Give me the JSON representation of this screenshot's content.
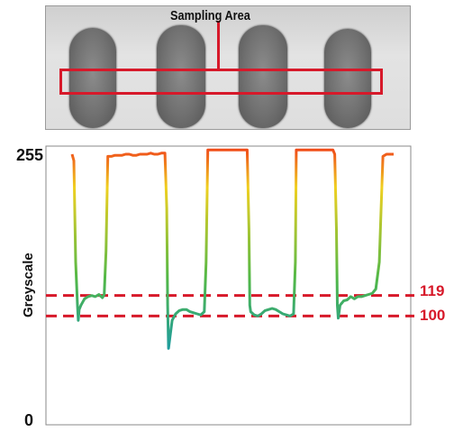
{
  "photo": {
    "annotation_label": "Sampling Area",
    "pill_count": 4
  },
  "chart_data": {
    "type": "line",
    "title": "",
    "xlabel": "",
    "ylabel": "Greyscale",
    "ylim": [
      0,
      255
    ],
    "y_tick_labels": [
      "255",
      "0"
    ],
    "reference_lines": [
      {
        "value": 119,
        "label": "119",
        "color": "#d7192a",
        "style": "dashed"
      },
      {
        "value": 100,
        "label": "100",
        "color": "#d7192a",
        "style": "dashed"
      }
    ],
    "color_scale": {
      "low": "#1a9aa6",
      "mid_low": "#52b847",
      "mid": "#f0d020",
      "high": "#f04a1a"
    },
    "series": [
      {
        "x": [
          0,
          2,
          4,
          6,
          7,
          8,
          10,
          12,
          14,
          18,
          22,
          26,
          30,
          34,
          36,
          38,
          40,
          44,
          48,
          52,
          56,
          60,
          64,
          68,
          72,
          76,
          80,
          84,
          88,
          92,
          96,
          100,
          104,
          106,
          107,
          108,
          112,
          116,
          120,
          124,
          128,
          132,
          136,
          140,
          144,
          148,
          150,
          152,
          154,
          155,
          156,
          160,
          164,
          168,
          172,
          176,
          180,
          184,
          188,
          192,
          196,
          198,
          199,
          200,
          204,
          208,
          212,
          216,
          220,
          224,
          228,
          232,
          236,
          240,
          244,
          248,
          250,
          251,
          252,
          256,
          260,
          264,
          268,
          272,
          276,
          280,
          284,
          288,
          292,
          294,
          296,
          297,
          298,
          300,
          304,
          308,
          312,
          316,
          320,
          324,
          328,
          332,
          336,
          340,
          344,
          346,
          348,
          350,
          352,
          356,
          360
        ],
        "y": [
          250,
          244,
          150,
          110,
          96,
          106,
          110,
          113,
          116,
          118,
          119,
          118,
          120,
          117,
          120,
          160,
          248,
          248,
          249,
          249,
          249,
          250,
          250,
          249,
          249,
          250,
          250,
          250,
          251,
          250,
          250,
          251,
          251,
          200,
          110,
          70,
          96,
          102,
          105,
          106,
          106,
          104,
          103,
          102,
          101,
          104,
          150,
          254,
          254,
          254,
          254,
          254,
          254,
          254,
          254,
          254,
          254,
          254,
          254,
          254,
          254,
          180,
          110,
          104,
          101,
          100,
          102,
          105,
          106,
          107,
          106,
          104,
          102,
          101,
          100,
          102,
          150,
          254,
          254,
          254,
          254,
          254,
          254,
          254,
          254,
          254,
          254,
          254,
          254,
          250,
          180,
          110,
          98,
          110,
          114,
          115,
          118,
          116,
          118,
          118,
          119,
          120,
          121,
          125,
          150,
          200,
          248,
          249,
          250,
          250,
          250
        ]
      }
    ]
  }
}
